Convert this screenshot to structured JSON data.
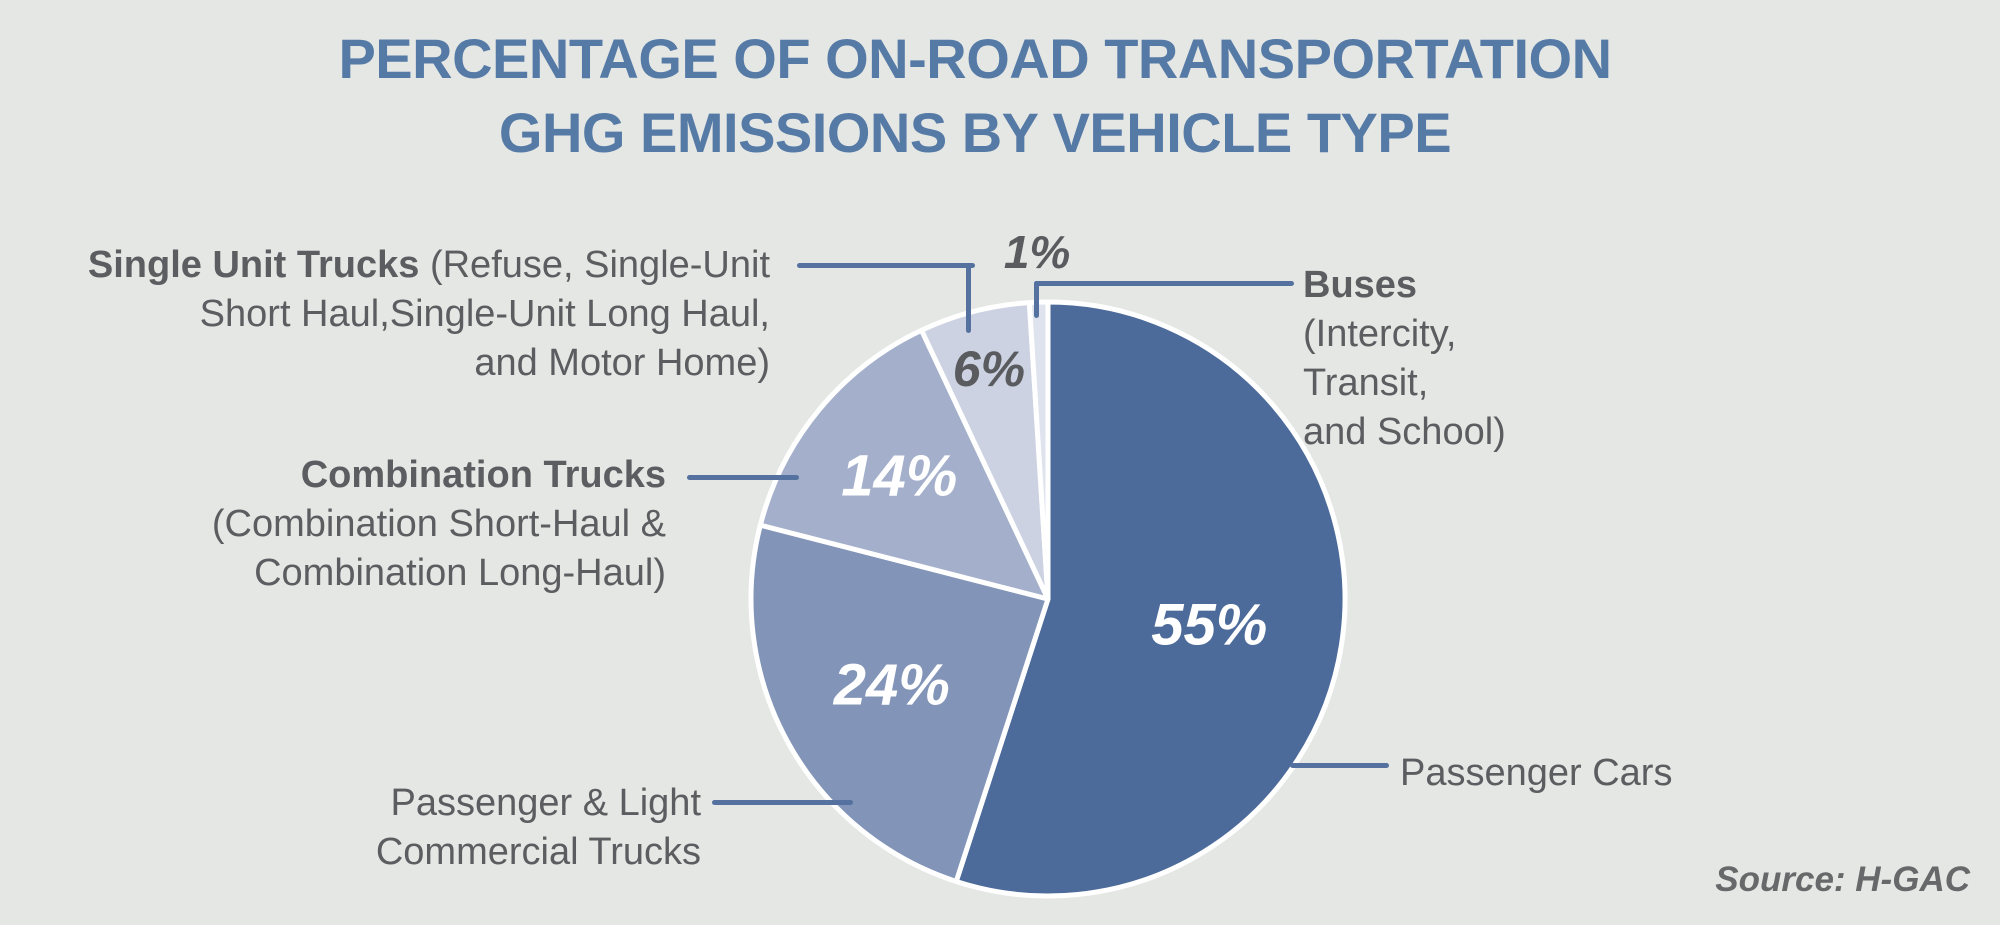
{
  "title": {
    "line1": "PERCENTAGE OF ON-ROAD TRANSPORTATION",
    "line2": "GHG EMISSIONS BY VEHICLE TYPE"
  },
  "source_note": "Source: H-GAC",
  "colors": {
    "background": "#e5e7e4",
    "title": "#567aa6",
    "leader_line": "#54719f",
    "label_text": "#5b5d60",
    "source_text": "#66686a",
    "slice_divider": "#ffffff"
  },
  "chart_data": {
    "type": "pie",
    "title": "Percentage of On-Road Transportation GHG Emissions by Vehicle Type",
    "direction": "clockwise",
    "start_angle_deg": 0,
    "legend_position": "callout-labels",
    "source": "H-GAC",
    "slices": [
      {
        "category": "Passenger Cars",
        "value_pct": 55,
        "pct_label": "55%",
        "color": "#4d6b9a",
        "pct_label_color": "#ffffff"
      },
      {
        "category": "Passenger & Light Commercial Trucks",
        "value_pct": 24,
        "pct_label": "24%",
        "color": "#8294b7",
        "pct_label_color": "#ffffff"
      },
      {
        "category": "Combination Trucks (Combination Short-Haul & Combination Long-Haul)",
        "value_pct": 14,
        "pct_label": "14%",
        "color": "#a4b0cb",
        "pct_label_color": "#ffffff"
      },
      {
        "category": "Single Unit Trucks (Refuse, Single-Unit Short Haul, Single-Unit Long Haul, and Motor Home)",
        "value_pct": 6,
        "pct_label": "6%",
        "color": "#ccd2e2",
        "pct_label_color": "#595b5e"
      },
      {
        "category": "Buses (Intercity, Transit, and School)",
        "value_pct": 1,
        "pct_label": "1%",
        "color": "#dfe3ee",
        "pct_label_color": "#595b5e"
      }
    ]
  },
  "callouts": {
    "single_unit": {
      "line1_bold": "Single Unit Trucks",
      "line1_rest": " (Refuse, Single-Unit",
      "line2": "Short Haul,Single-Unit Long Haul,",
      "line3": "and Motor Home)"
    },
    "combination": {
      "line1_bold": "Combination Trucks",
      "line2": "(Combination Short-Haul &",
      "line3": "Combination Long-Haul)"
    },
    "passenger_light": {
      "line1": "Passenger & Light",
      "line2": "Commercial Trucks"
    },
    "buses": {
      "line1_bold": "Buses",
      "line2": "(Intercity,",
      "line3": "Transit,",
      "line4": "and School)"
    },
    "passenger_cars": {
      "label": "Passenger Cars"
    }
  }
}
